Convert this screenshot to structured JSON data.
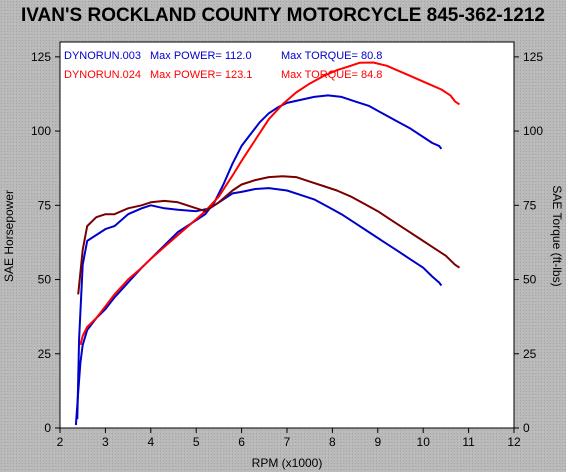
{
  "chart_data": {
    "type": "line",
    "title": "IVAN'S ROCKLAND COUNTY MOTORCYCLE 845-362-1212",
    "xlabel": "RPM (x1000)",
    "ylabel_left": "SAE Horsepower",
    "ylabel_right": "SAE Torque (ft-lbs)",
    "xlim": [
      2,
      12
    ],
    "ylim": [
      0,
      130
    ],
    "x_ticks": [
      "2",
      "3",
      "4",
      "5",
      "6",
      "7",
      "8",
      "9",
      "10",
      "11",
      "12"
    ],
    "y_ticks_left": [
      "0",
      "25",
      "50",
      "75",
      "100",
      "125"
    ],
    "y_ticks_right": [
      "0",
      "25",
      "50",
      "75",
      "100",
      "125"
    ],
    "grid": false,
    "legend": [
      {
        "run": "DYNORUN.003",
        "max_power": "Max POWER= 112.0",
        "max_torque": "Max TORQUE= 80.8",
        "color": "#0000cc"
      },
      {
        "run": "DYNORUN.024",
        "max_power": "Max POWER= 123.1",
        "max_torque": "Max TORQUE= 84.8",
        "color": "#ff0000"
      }
    ],
    "series": [
      {
        "name": "DYNORUN.003",
        "measure": "power",
        "color": "#0000cc",
        "points": [
          [
            2.35,
            1
          ],
          [
            2.4,
            12
          ],
          [
            2.45,
            22
          ],
          [
            2.5,
            28
          ],
          [
            2.6,
            33
          ],
          [
            2.8,
            37
          ],
          [
            3.0,
            40
          ],
          [
            3.2,
            44
          ],
          [
            3.5,
            49
          ],
          [
            3.8,
            54
          ],
          [
            4.0,
            57
          ],
          [
            4.2,
            60
          ],
          [
            4.4,
            63
          ],
          [
            4.6,
            66
          ],
          [
            4.8,
            68
          ],
          [
            5.0,
            70
          ],
          [
            5.2,
            72
          ],
          [
            5.4,
            76
          ],
          [
            5.6,
            82
          ],
          [
            5.8,
            89
          ],
          [
            6.0,
            95
          ],
          [
            6.2,
            99
          ],
          [
            6.4,
            103
          ],
          [
            6.6,
            106
          ],
          [
            6.8,
            108
          ],
          [
            7.0,
            109.5
          ],
          [
            7.3,
            110.5
          ],
          [
            7.6,
            111.5
          ],
          [
            7.9,
            112
          ],
          [
            8.2,
            111.5
          ],
          [
            8.5,
            110
          ],
          [
            8.8,
            108.5
          ],
          [
            9.1,
            106
          ],
          [
            9.4,
            103.5
          ],
          [
            9.7,
            101
          ],
          [
            10.0,
            98
          ],
          [
            10.2,
            96
          ],
          [
            10.35,
            95
          ],
          [
            10.4,
            94
          ]
        ]
      },
      {
        "name": "DYNORUN.003",
        "measure": "torque",
        "color": "#0000cc",
        "points": [
          [
            2.38,
            3
          ],
          [
            2.42,
            30
          ],
          [
            2.5,
            55
          ],
          [
            2.6,
            63
          ],
          [
            2.8,
            65
          ],
          [
            3.0,
            67
          ],
          [
            3.2,
            68
          ],
          [
            3.5,
            72
          ],
          [
            3.8,
            74
          ],
          [
            4.0,
            75
          ],
          [
            4.3,
            74
          ],
          [
            4.6,
            73.5
          ],
          [
            5.0,
            73
          ],
          [
            5.3,
            74
          ],
          [
            5.6,
            77
          ],
          [
            5.8,
            79
          ],
          [
            6.0,
            79.5
          ],
          [
            6.3,
            80.5
          ],
          [
            6.6,
            80.8
          ],
          [
            7.0,
            80
          ],
          [
            7.3,
            78.5
          ],
          [
            7.6,
            77
          ],
          [
            7.9,
            74.5
          ],
          [
            8.2,
            72
          ],
          [
            8.5,
            69
          ],
          [
            8.8,
            66
          ],
          [
            9.1,
            63
          ],
          [
            9.4,
            60
          ],
          [
            9.7,
            57
          ],
          [
            10.0,
            54
          ],
          [
            10.2,
            51
          ],
          [
            10.35,
            49
          ],
          [
            10.4,
            48
          ]
        ]
      },
      {
        "name": "DYNORUN.024",
        "measure": "power",
        "color": "#ff0000",
        "points": [
          [
            2.45,
            28
          ],
          [
            2.5,
            31
          ],
          [
            2.6,
            34
          ],
          [
            2.8,
            37
          ],
          [
            3.0,
            41
          ],
          [
            3.2,
            45
          ],
          [
            3.5,
            50
          ],
          [
            3.8,
            54
          ],
          [
            4.0,
            57
          ],
          [
            4.3,
            61
          ],
          [
            4.6,
            65
          ],
          [
            4.9,
            69
          ],
          [
            5.2,
            73
          ],
          [
            5.5,
            78
          ],
          [
            5.8,
            85
          ],
          [
            6.0,
            90
          ],
          [
            6.3,
            97
          ],
          [
            6.6,
            104
          ],
          [
            6.9,
            109
          ],
          [
            7.2,
            113
          ],
          [
            7.5,
            116
          ],
          [
            7.8,
            118.5
          ],
          [
            8.1,
            120.5
          ],
          [
            8.4,
            122
          ],
          [
            8.6,
            123
          ],
          [
            8.9,
            123.1
          ],
          [
            9.2,
            122
          ],
          [
            9.5,
            120
          ],
          [
            9.8,
            118
          ],
          [
            10.1,
            116
          ],
          [
            10.4,
            114
          ],
          [
            10.6,
            112
          ],
          [
            10.7,
            110
          ],
          [
            10.8,
            109
          ]
        ]
      },
      {
        "name": "DYNORUN.024",
        "measure": "torque",
        "color": "#7a0000",
        "points": [
          [
            2.4,
            45
          ],
          [
            2.5,
            60
          ],
          [
            2.6,
            68
          ],
          [
            2.8,
            71
          ],
          [
            3.0,
            72
          ],
          [
            3.2,
            72
          ],
          [
            3.5,
            74
          ],
          [
            3.8,
            75
          ],
          [
            4.0,
            76
          ],
          [
            4.3,
            76.5
          ],
          [
            4.6,
            76
          ],
          [
            4.9,
            74.5
          ],
          [
            5.2,
            73
          ],
          [
            5.5,
            76
          ],
          [
            5.8,
            80
          ],
          [
            6.0,
            82
          ],
          [
            6.3,
            83.5
          ],
          [
            6.6,
            84.5
          ],
          [
            6.9,
            84.8
          ],
          [
            7.2,
            84.5
          ],
          [
            7.5,
            83
          ],
          [
            7.8,
            81.5
          ],
          [
            8.1,
            80
          ],
          [
            8.4,
            78
          ],
          [
            8.7,
            75.5
          ],
          [
            9.0,
            73
          ],
          [
            9.3,
            70
          ],
          [
            9.6,
            67
          ],
          [
            9.9,
            64
          ],
          [
            10.2,
            61
          ],
          [
            10.5,
            58
          ],
          [
            10.7,
            55
          ],
          [
            10.8,
            54
          ]
        ]
      }
    ]
  }
}
